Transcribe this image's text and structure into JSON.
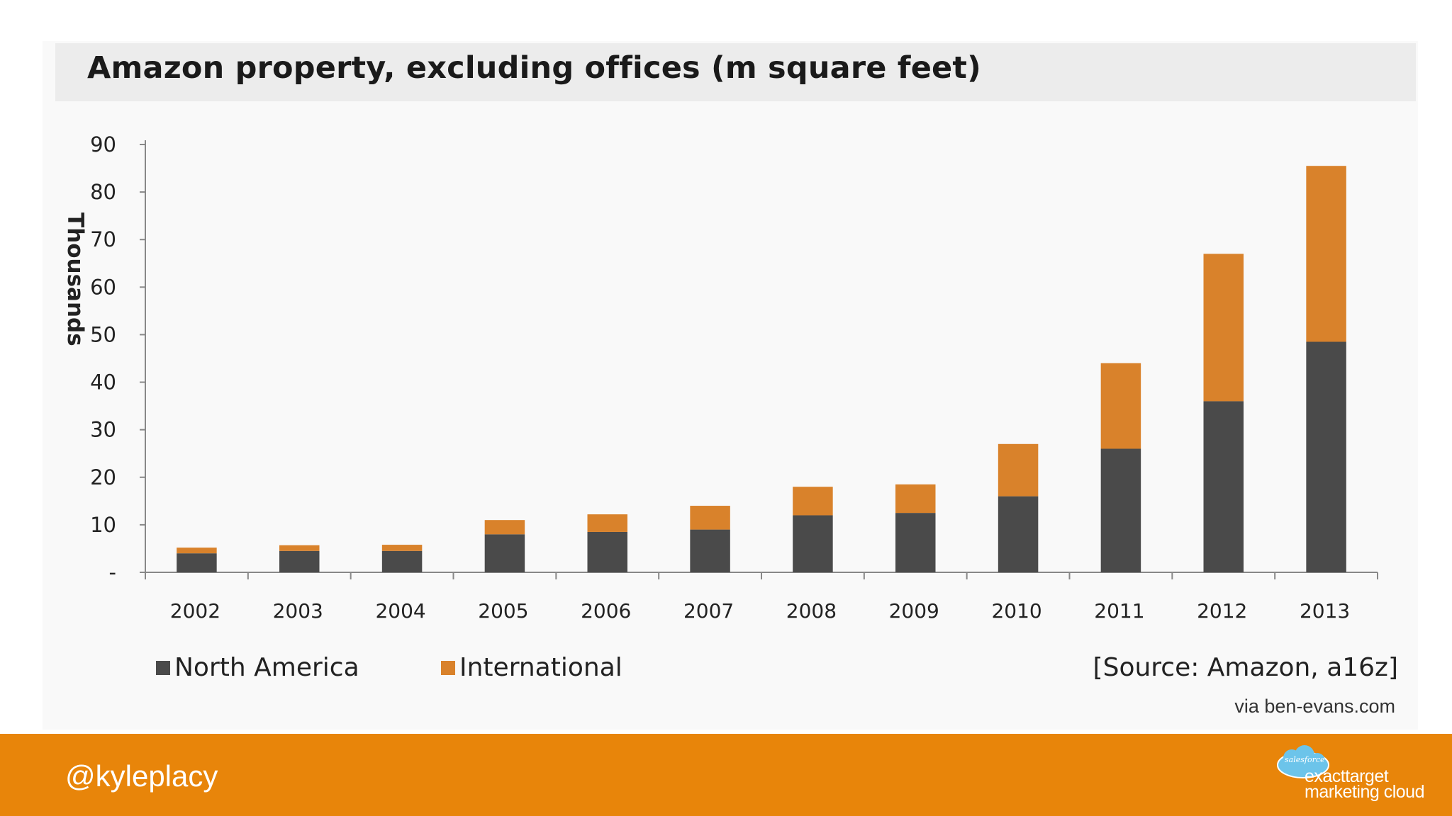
{
  "chart_data": {
    "type": "bar",
    "stacked": true,
    "title": "Amazon property, excluding offices (m square feet)",
    "ylabel": "Thousands",
    "xlabel": "",
    "ylim": [
      0,
      90
    ],
    "yticks": [
      0,
      10,
      20,
      30,
      40,
      50,
      60,
      70,
      80,
      90
    ],
    "ytick_labels": [
      "-",
      "10",
      "20",
      "30",
      "40",
      "50",
      "60",
      "70",
      "80",
      "90"
    ],
    "categories": [
      "2002",
      "2003",
      "2004",
      "2005",
      "2006",
      "2007",
      "2008",
      "2009",
      "2010",
      "2011",
      "2012",
      "2013"
    ],
    "series": [
      {
        "name": "North America",
        "color": "#4a4a4a",
        "values": [
          4,
          4.5,
          4.5,
          8,
          8.5,
          9,
          12,
          12.5,
          16,
          26,
          36,
          48.5
        ]
      },
      {
        "name": "International",
        "color": "#d9822b",
        "values": [
          1.2,
          1.2,
          1.3,
          3,
          3.7,
          5,
          6,
          6,
          11,
          18,
          31,
          37
        ]
      }
    ],
    "legend_position": "bottom-left",
    "grid": false
  },
  "source_note": "[Source: Amazon, a16z]",
  "via_note": "via ben-evans.com",
  "footer": {
    "handle": "@kyleplacy",
    "brand_line1": "exacttarget",
    "brand_line2": "marketing cloud",
    "brand_cloud_text": "salesforce"
  },
  "colors": {
    "accent": "#e8850a",
    "title_bar": "#ececec"
  }
}
